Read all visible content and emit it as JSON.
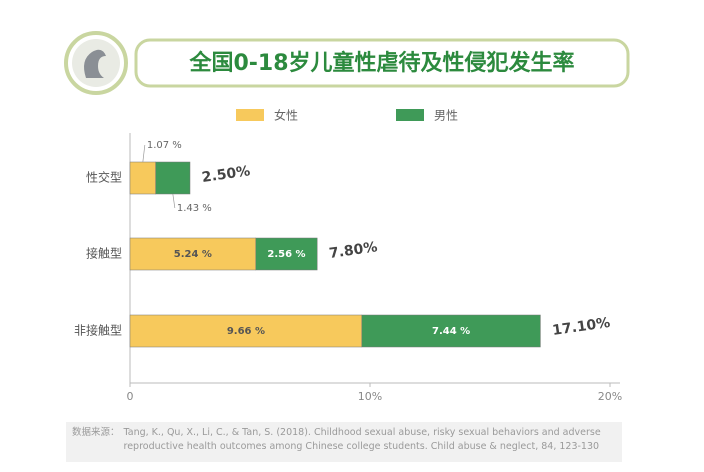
{
  "chart_data": {
    "type": "stacked-bar-horizontal",
    "title": "全国0-18岁儿童性虐待及性侵犯发生率",
    "categories": [
      "性交型",
      "接触型",
      "非接触型"
    ],
    "series": [
      {
        "name": "女性",
        "color": "#f7c95c",
        "values": [
          1.07,
          5.24,
          9.66
        ],
        "value_labels": [
          "1.07 %",
          "5.24 %",
          "9.66 %"
        ]
      },
      {
        "name": "男性",
        "color": "#3f9a58",
        "values": [
          1.43,
          2.56,
          7.44
        ],
        "value_labels": [
          "1.43 %",
          "2.56 %",
          "7.44 %"
        ]
      }
    ],
    "totals": {
      "values": [
        2.5,
        7.8,
        17.1
      ],
      "value_labels": [
        "2.50%",
        "7.80%",
        "17.10%"
      ]
    },
    "xlim": [
      0,
      20
    ],
    "xticks": [
      0,
      {
        "value": 10,
        "label": "10%"
      },
      {
        "value": 20,
        "label": "20%"
      }
    ],
    "source_label": "数据来源：",
    "source": "Tang, K., Qu, X., Li, C., & Tan, S. (2018). Childhood sexual abuse, risky sexual behaviors and adverse reproductive health outcomes among Chinese college students. Child abuse & neglect, 84, 123-130"
  }
}
